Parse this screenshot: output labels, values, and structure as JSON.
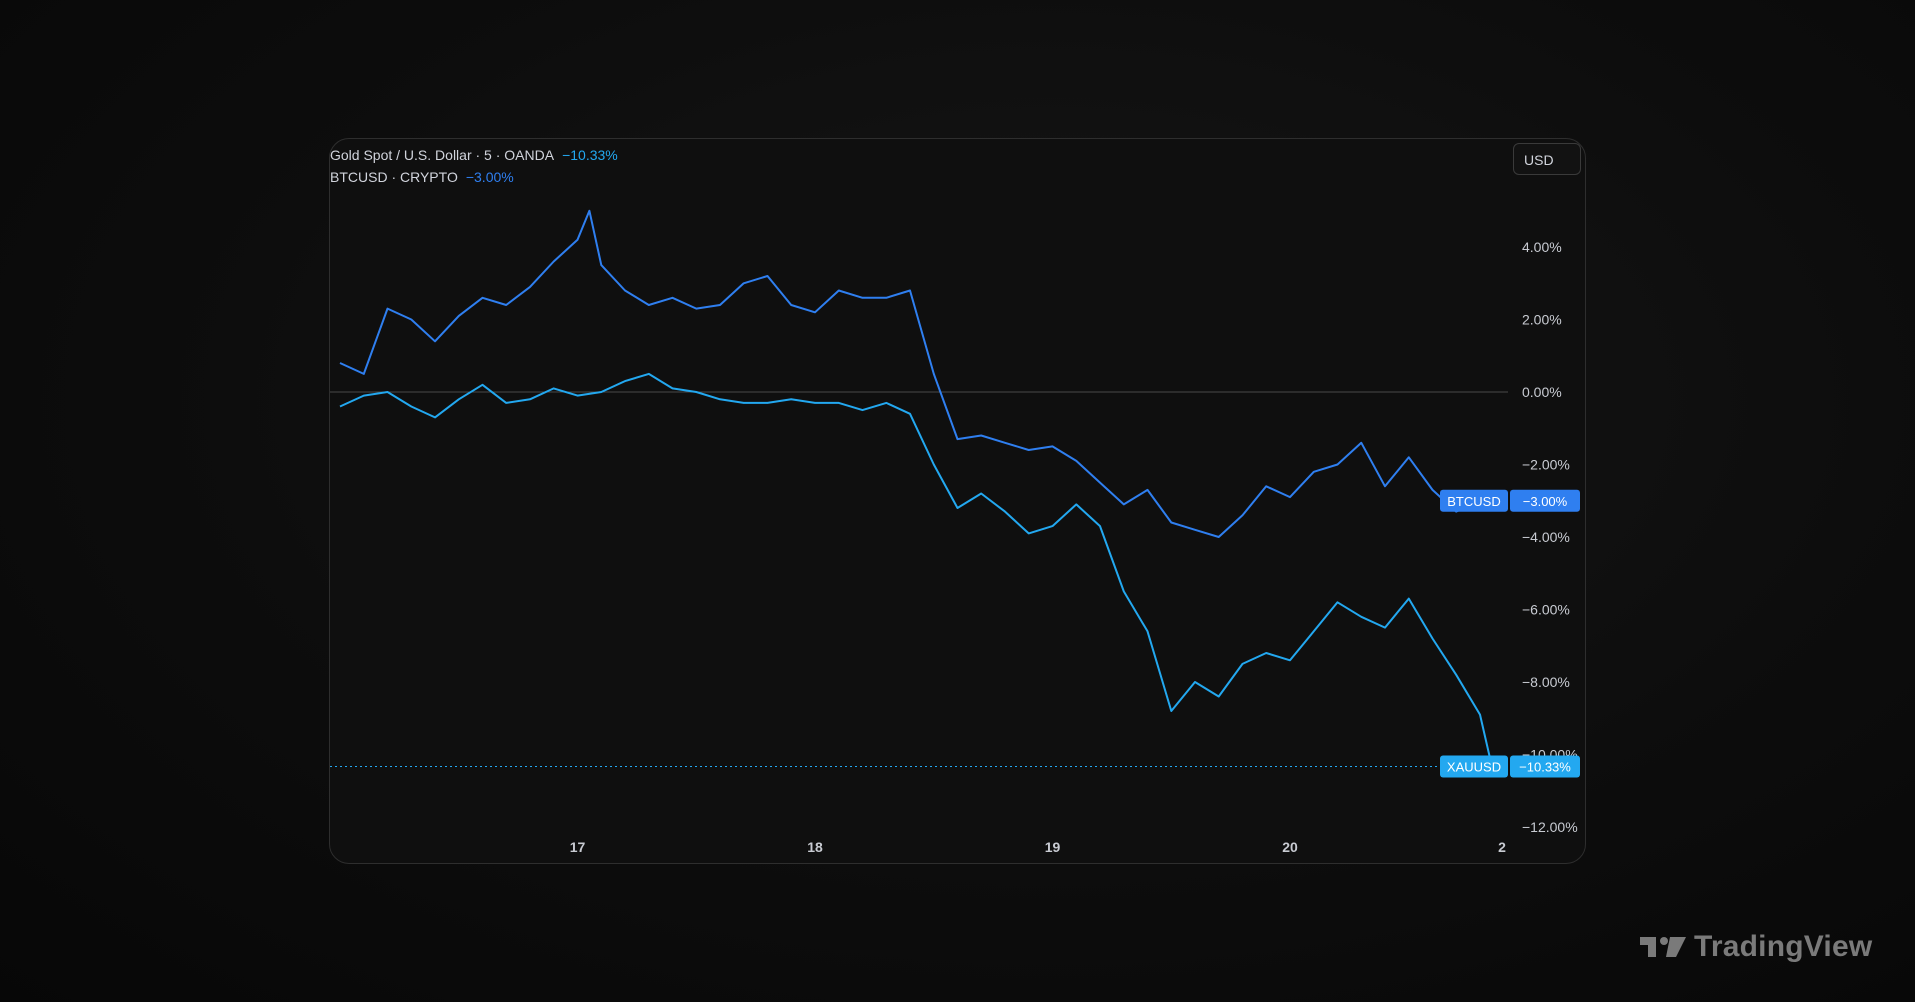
{
  "chart_data": {
    "type": "line",
    "x_ticks": [
      "17",
      "18",
      "19",
      "20",
      "2"
    ],
    "y_ticks": [
      "4.00%",
      "2.00%",
      "0.00%",
      "−2.00%",
      "−4.00%",
      "−6.00%",
      "−8.00%",
      "−10.00%",
      "−12.00%"
    ],
    "ylim": [
      -12,
      5
    ],
    "y_unit": "%",
    "scale_currency": "USD",
    "series": [
      {
        "name": "BTCUSD",
        "legend_label": "BTCUSD · CRYPTO",
        "change_label": "−3.00%",
        "badge_label": "BTCUSD",
        "color": "#2f7ff0",
        "x": [
          16.0,
          16.1,
          16.2,
          16.3,
          16.4,
          16.5,
          16.6,
          16.7,
          16.8,
          16.9,
          17.0,
          17.05,
          17.1,
          17.2,
          17.3,
          17.4,
          17.5,
          17.6,
          17.7,
          17.8,
          17.9,
          18.0,
          18.1,
          18.2,
          18.3,
          18.4,
          18.5,
          18.6,
          18.7,
          18.8,
          18.9,
          19.0,
          19.1,
          19.2,
          19.3,
          19.4,
          19.5,
          19.6,
          19.7,
          19.8,
          19.9,
          20.0,
          20.1,
          20.2,
          20.3,
          20.4,
          20.5,
          20.6,
          20.7,
          20.8
        ],
        "values": [
          0.8,
          0.5,
          2.3,
          2.0,
          1.4,
          2.1,
          2.6,
          2.4,
          2.9,
          3.6,
          4.2,
          5.0,
          3.5,
          2.8,
          2.4,
          2.6,
          2.3,
          2.4,
          3.0,
          3.2,
          2.4,
          2.2,
          2.8,
          2.6,
          2.6,
          2.8,
          0.5,
          -1.3,
          -1.2,
          -1.4,
          -1.6,
          -1.5,
          -1.9,
          -2.5,
          -3.1,
          -2.7,
          -3.6,
          -3.8,
          -4.0,
          -3.4,
          -2.6,
          -2.9,
          -2.2,
          -2.0,
          -1.4,
          -2.6,
          -1.8,
          -2.7,
          -3.3,
          -3.0
        ]
      },
      {
        "name": "XAUUSD",
        "legend_label": "Gold Spot / U.S. Dollar · 5 · OANDA",
        "change_label": "−10.33%",
        "badge_label": "XAUUSD",
        "color": "#23a8f0",
        "x": [
          16.0,
          16.1,
          16.2,
          16.3,
          16.4,
          16.5,
          16.6,
          16.7,
          16.8,
          16.9,
          17.0,
          17.1,
          17.2,
          17.3,
          17.4,
          17.5,
          17.6,
          17.7,
          17.8,
          17.9,
          18.0,
          18.1,
          18.2,
          18.3,
          18.4,
          18.5,
          18.6,
          18.7,
          18.8,
          18.9,
          19.0,
          19.1,
          19.2,
          19.3,
          19.4,
          19.5,
          19.6,
          19.7,
          19.8,
          19.9,
          20.0,
          20.1,
          20.2,
          20.3,
          20.4,
          20.5,
          20.6,
          20.7,
          20.8,
          20.85
        ],
        "values": [
          -0.4,
          -0.1,
          0.0,
          -0.4,
          -0.7,
          -0.2,
          0.2,
          -0.3,
          -0.2,
          0.1,
          -0.1,
          0.0,
          0.3,
          0.5,
          0.1,
          0.0,
          -0.2,
          -0.3,
          -0.3,
          -0.2,
          -0.3,
          -0.3,
          -0.5,
          -0.3,
          -0.6,
          -2.0,
          -3.2,
          -2.8,
          -3.3,
          -3.9,
          -3.7,
          -3.1,
          -3.7,
          -5.5,
          -6.6,
          -8.8,
          -8.0,
          -8.4,
          -7.5,
          -7.2,
          -7.4,
          -6.6,
          -5.8,
          -6.2,
          -6.5,
          -5.7,
          -6.8,
          -7.8,
          -8.9,
          -10.33
        ]
      }
    ],
    "annotations": []
  },
  "brand": {
    "name": "TradingView"
  }
}
